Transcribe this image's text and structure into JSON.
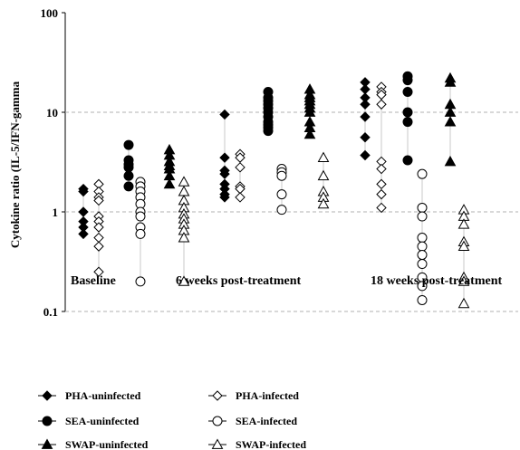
{
  "chart_data": {
    "type": "scatter",
    "title": "",
    "ylabel": "Cytokine ratio (IL-5/IFN-gamma",
    "yscale": "log",
    "ylim": [
      0.1,
      100
    ],
    "yticks": [
      "0.1",
      "1",
      "10",
      "100"
    ],
    "gridlines": "dashed at 1, 10",
    "legend_position": "bottom",
    "groups": [
      "Baseline",
      "6 weeks post-treatment",
      "18 weeks post-treatment"
    ],
    "series": [
      {
        "name": "PHA-uninfected",
        "marker": "diamond-filled",
        "color": "#000000",
        "values": [
          [
            1.7,
            1.6,
            1.0,
            0.8,
            0.7,
            0.6
          ],
          [
            9.5,
            3.5,
            2.6,
            2.4,
            1.9,
            1.7,
            1.5,
            1.4
          ],
          [
            20,
            17,
            14,
            12,
            9,
            5.6,
            3.7
          ]
        ]
      },
      {
        "name": "PHA-infected",
        "marker": "diamond-open",
        "color": "#000000",
        "values": [
          [
            1.9,
            1.6,
            1.4,
            1.3,
            0.9,
            0.8,
            0.7,
            0.55,
            0.45,
            0.25
          ],
          [
            3.8,
            3.5,
            2.8,
            1.8,
            1.7,
            1.4
          ],
          [
            18,
            16,
            15,
            12,
            3.2,
            2.7,
            1.9,
            1.5,
            1.1
          ]
        ]
      },
      {
        "name": "SEA-uninfected",
        "marker": "circle-filled",
        "color": "#000000",
        "values": [
          [
            4.7,
            3.3,
            3.0,
            2.8,
            2.3,
            1.8
          ],
          [
            16,
            14,
            13,
            12,
            11,
            10,
            9,
            8,
            7.5,
            7,
            6.5
          ],
          [
            23,
            21,
            16,
            10,
            8,
            3.3
          ]
        ]
      },
      {
        "name": "SEA-infected",
        "marker": "circle-open",
        "color": "#000000",
        "values": [
          [
            2.0,
            1.8,
            1.6,
            1.4,
            1.2,
            1.0,
            0.9,
            0.7,
            0.6,
            0.2
          ],
          [
            2.7,
            2.5,
            2.3,
            1.5,
            1.05
          ],
          [
            2.4,
            1.1,
            0.9,
            0.55,
            0.45,
            0.37,
            0.3,
            0.22,
            0.18,
            0.13
          ]
        ]
      },
      {
        "name": "SWAP-uninfected",
        "marker": "triangle-filled",
        "color": "#000000",
        "values": [
          [
            4.2,
            3.7,
            3.2,
            2.9,
            2.7,
            2.3,
            1.9
          ],
          [
            17,
            15,
            14,
            13,
            12,
            11,
            10,
            8,
            7,
            6
          ],
          [
            22,
            20,
            12,
            10,
            8,
            3.2
          ]
        ]
      },
      {
        "name": "SWAP-infected",
        "marker": "triangle-open",
        "color": "#000000",
        "values": [
          [
            2.0,
            1.6,
            1.3,
            1.1,
            0.95,
            0.85,
            0.75,
            0.65,
            0.55,
            0.2
          ],
          [
            3.5,
            2.3,
            1.6,
            1.4,
            1.2
          ],
          [
            1.05,
            0.9,
            0.75,
            0.5,
            0.45,
            0.22,
            0.2,
            0.12
          ]
        ]
      }
    ]
  }
}
